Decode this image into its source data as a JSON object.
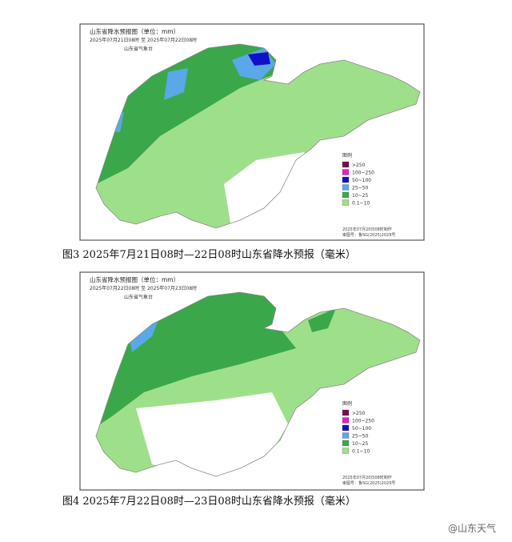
{
  "maps": [
    {
      "title": "山东省降水预报图（单位：mm）",
      "period": "2025年07月21日08时 至 2025年07月22日08时",
      "issuer": "山东省气象台",
      "legend_title": "图例",
      "legend": [
        {
          "label": ">250",
          "color": "#7a0a4a"
        },
        {
          "label": "100~250",
          "color": "#e020c0"
        },
        {
          "label": "50~100",
          "color": "#1010c8"
        },
        {
          "label": "25~50",
          "color": "#5aa8e8"
        },
        {
          "label": "10~25",
          "color": "#3aa84a"
        },
        {
          "label": "0.1~10",
          "color": "#9ee08a"
        }
      ],
      "footer": [
        "2025年07月20日08时制作",
        "审图号：鲁SG(2025)2029号"
      ],
      "caption": "图3 2025年7月21日08时—22日08时山东省降水预报（毫米）"
    },
    {
      "title": "山东省降水预报图（单位：mm）",
      "period": "2025年07月22日08时 至 2025年07月23日08时",
      "issuer": "山东省气象台",
      "legend_title": "图例",
      "legend": [
        {
          "label": ">250",
          "color": "#7a0a4a"
        },
        {
          "label": "100~250",
          "color": "#e020c0"
        },
        {
          "label": "50~100",
          "color": "#1010c8"
        },
        {
          "label": "25~50",
          "color": "#5aa8e8"
        },
        {
          "label": "10~25",
          "color": "#3aa84a"
        },
        {
          "label": "0.1~10",
          "color": "#9ee08a"
        }
      ],
      "footer": [
        "2025年07月20日08时制作",
        "审图号：鲁SG(2025)2029号"
      ],
      "caption": "图4 2025年7月22日08时—23日08时山东省降水预报（毫米）"
    }
  ],
  "watermark": "@山东天气"
}
